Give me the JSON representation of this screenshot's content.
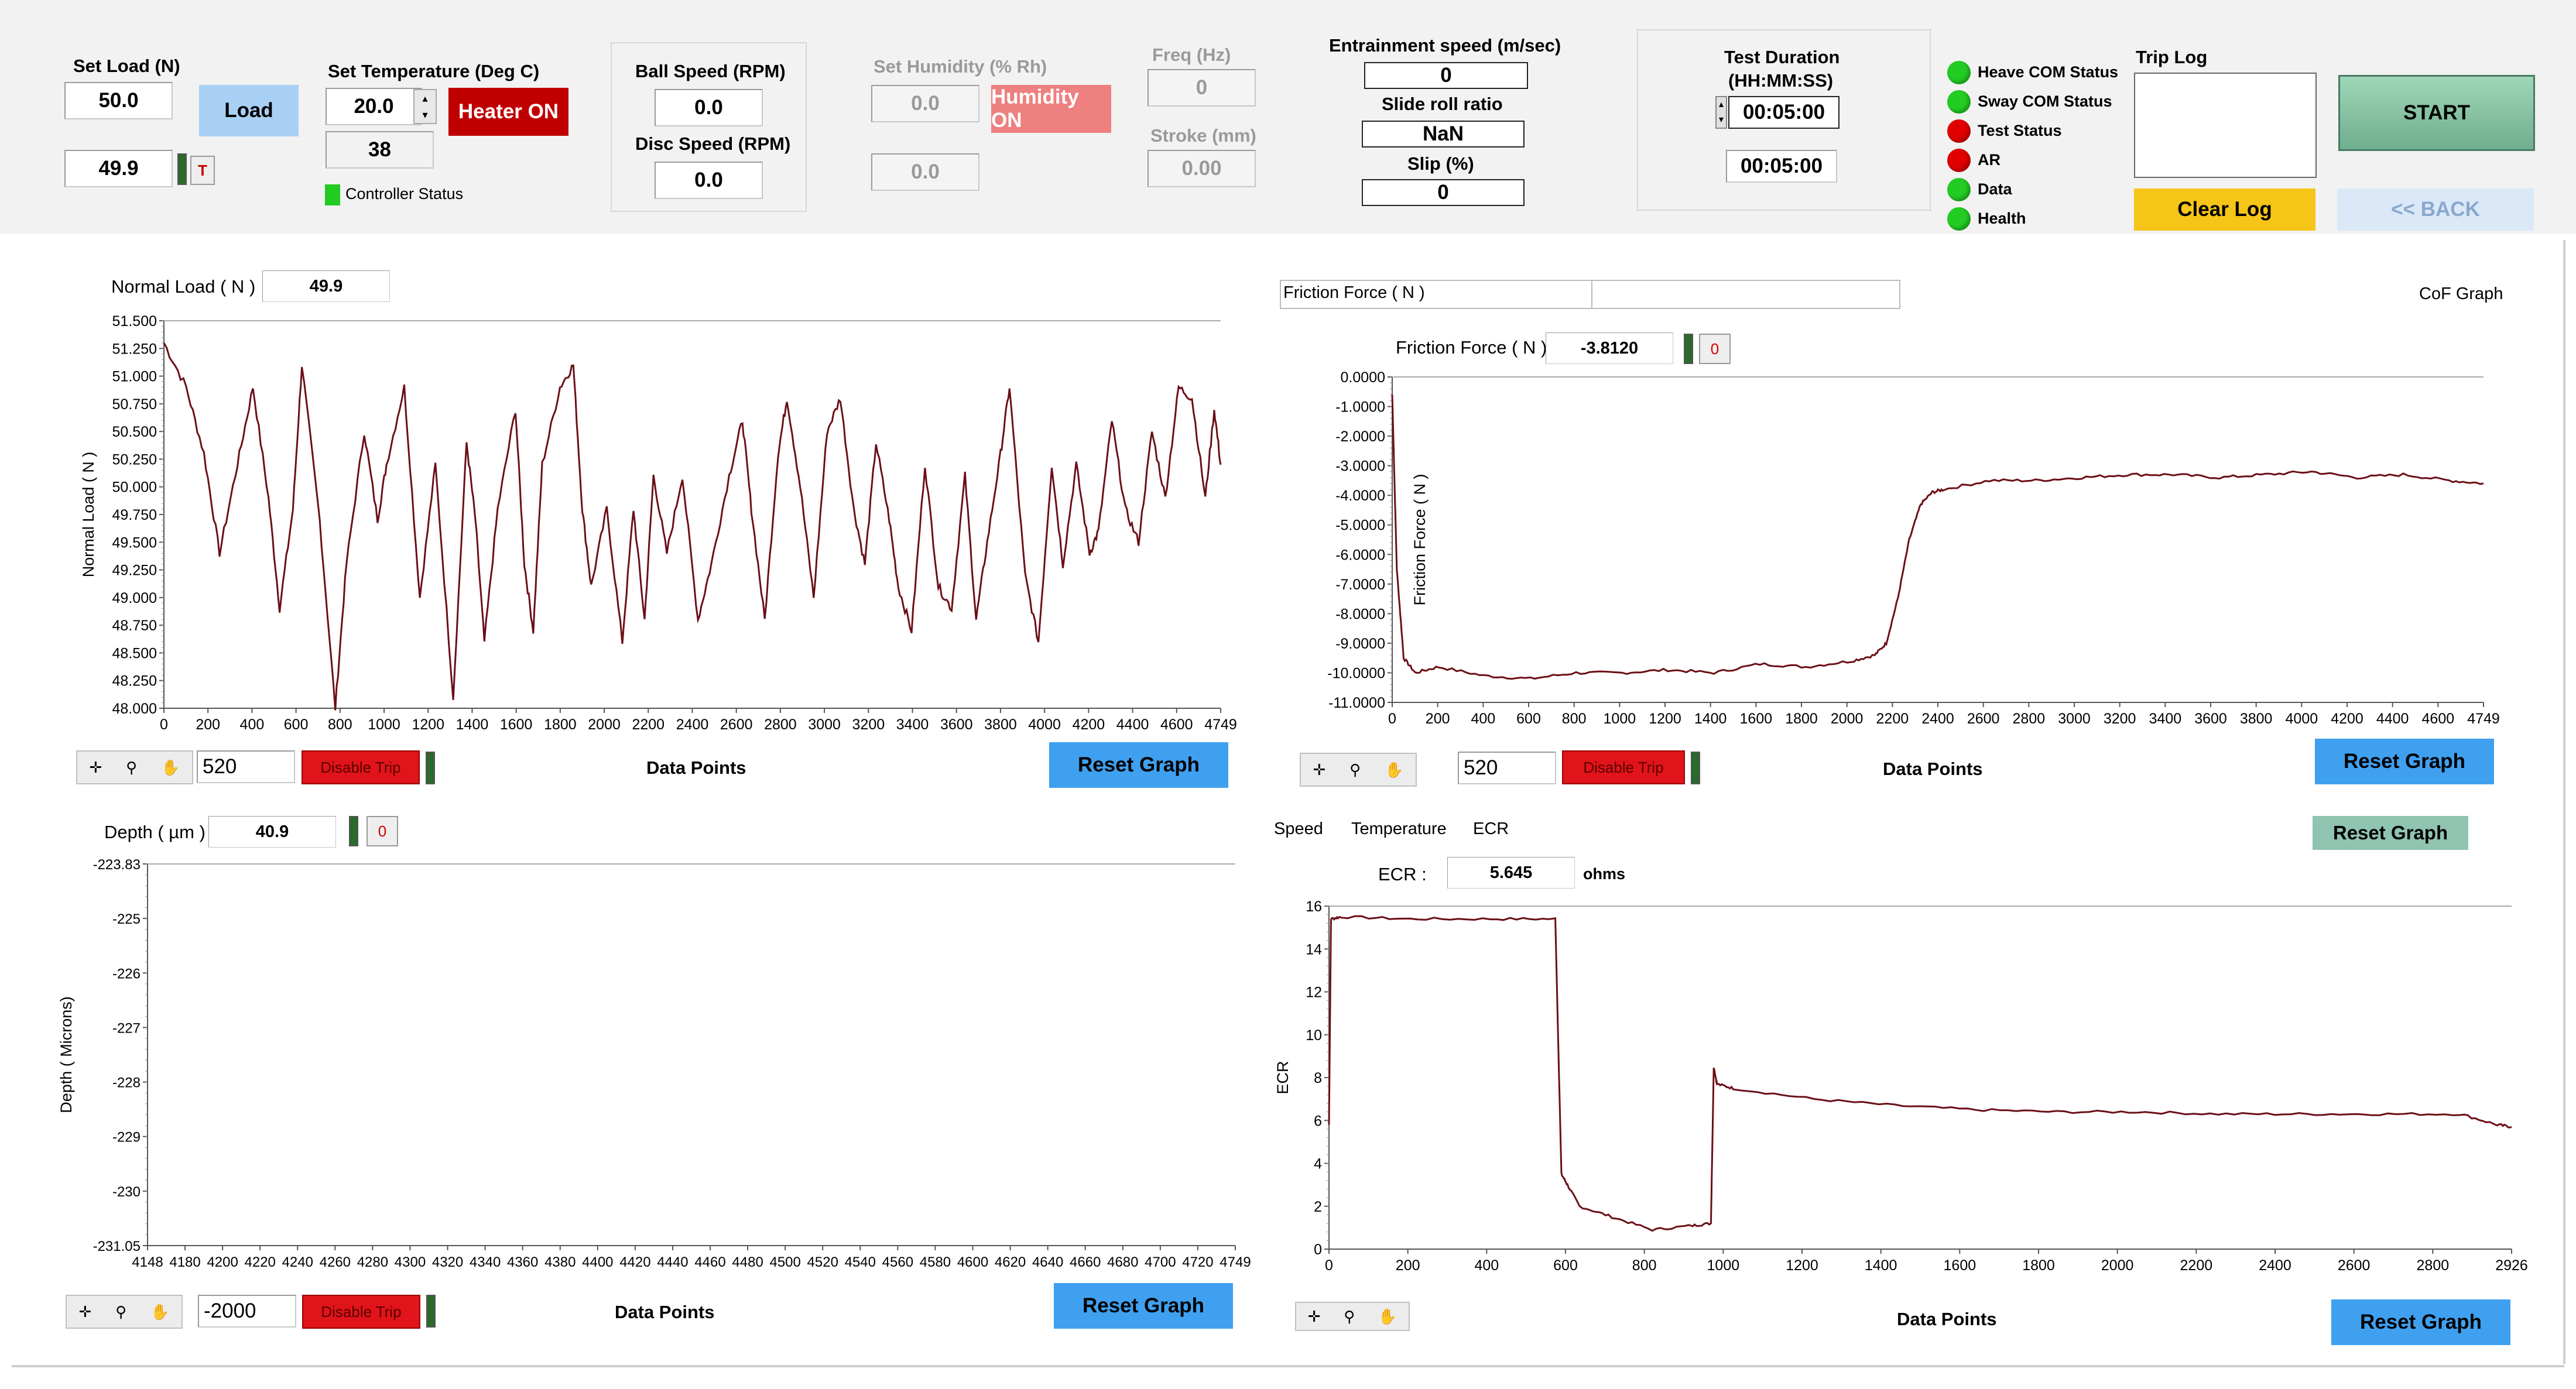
{
  "colors": {
    "trace": "#6b0f16",
    "panel_bg": "#f2f2f2",
    "led_green": "#22cc22",
    "led_red": "#e00000",
    "heater": "#c00000",
    "humidity": "#ee8080",
    "load_btn": "#a8d0f5",
    "start": "#7fbf9f",
    "clear_log": "#f5c518",
    "reset": "#3fa0f0"
  },
  "controls": {
    "set_load": {
      "label": "Set Load (N)",
      "value": "50.0",
      "actual": "49.9",
      "button": "Load",
      "t_button": "T"
    },
    "set_temp": {
      "label": "Set Temperature (Deg C)",
      "value": "20.0",
      "actual": "38",
      "button": "Heater ON",
      "status": "Controller  Status"
    },
    "ball_speed": {
      "label": "Ball Speed (RPM)",
      "value": "0.0"
    },
    "disc_speed": {
      "label": "Disc Speed (RPM)",
      "value": "0.0"
    },
    "humidity": {
      "label": "Set Humidity  (% Rh)",
      "value": "0.0",
      "actual": "0.0",
      "button": "Humidity ON"
    },
    "freq": {
      "label": "Freq (Hz)",
      "value": "0"
    },
    "stroke": {
      "label": "Stroke (mm)",
      "value": "0.00"
    },
    "entrainment": {
      "label": "Entrainment speed (m/sec)",
      "value": "0"
    },
    "slide_roll": {
      "label": "Slide roll ratio",
      "value": "NaN"
    },
    "slip": {
      "label": "Slip (%)",
      "value": "0"
    },
    "test_duration": {
      "label1": "Test Duration",
      "label2": "(HH:MM:SS)",
      "set": "00:05:00",
      "actual": "00:05:00"
    },
    "status_leds": [
      {
        "label": "Heave COM Status",
        "state": "green"
      },
      {
        "label": "Sway COM Status",
        "state": "green"
      },
      {
        "label": "Test Status",
        "state": "red"
      },
      {
        "label": "AR",
        "state": "red"
      },
      {
        "label": "Data",
        "state": "green"
      },
      {
        "label": "Health",
        "state": "green"
      }
    ],
    "trip_log": {
      "label": "Trip Log",
      "clear": "Clear Log"
    },
    "start": "START",
    "back": "<< BACK"
  },
  "graphs": {
    "load": {
      "readout_label": "Normal Load ( N )",
      "readout_value": "49.9",
      "ylabel": "Normal Load ( N )",
      "xlabel": "Data Points",
      "points_input": "520",
      "disable_trip": "Disable Trip",
      "reset": "Reset Graph",
      "yticks": [
        "51.500",
        "51.250",
        "51.000",
        "50.750",
        "50.500",
        "50.250",
        "50.000",
        "49.750",
        "49.500",
        "49.250",
        "49.000",
        "48.750",
        "48.500",
        "48.250",
        "48.000"
      ],
      "xticks": [
        "0",
        "200",
        "400",
        "600",
        "800",
        "1000",
        "1200",
        "1400",
        "1600",
        "1800",
        "2000",
        "2200",
        "2400",
        "2600",
        "2800",
        "3000",
        "3200",
        "3400",
        "3600",
        "3800",
        "4000",
        "4200",
        "4400",
        "4600",
        "4749"
      ]
    },
    "friction": {
      "header_label": "Friction Force ( N )",
      "header_right": "CoF Graph",
      "readout_label": "Friction Force ( N )",
      "readout_value": "-3.8120",
      "readout_btn": "0",
      "ylabel": "Friction Force ( N )",
      "xlabel": "Data Points",
      "points_input": "520",
      "disable_trip": "Disable Trip",
      "reset": "Reset Graph",
      "yticks": [
        "0.0000",
        "-1.0000",
        "-2.0000",
        "-3.0000",
        "-4.0000",
        "-5.0000",
        "-6.0000",
        "-7.0000",
        "-8.0000",
        "-9.0000",
        "-10.0000",
        "-11.0000"
      ],
      "xticks": [
        "0",
        "200",
        "400",
        "600",
        "800",
        "1000",
        "1200",
        "1400",
        "1600",
        "1800",
        "2000",
        "2200",
        "2400",
        "2600",
        "2800",
        "3000",
        "3200",
        "3400",
        "3600",
        "3800",
        "4000",
        "4200",
        "4400",
        "4600",
        "4749"
      ]
    },
    "depth": {
      "readout_label": "Depth ( µm )",
      "readout_value": "40.9",
      "readout_btn": "0",
      "ylabel": "Depth ( Microns)",
      "xlabel": "Data Points",
      "points_input": "-2000",
      "disable_trip": "Disable Trip",
      "reset": "Reset Graph",
      "yticks": [
        "-223.83",
        "-225",
        "-226",
        "-227",
        "-228",
        "-229",
        "-230",
        "-231.05"
      ],
      "xticks": [
        "4148",
        "4180",
        "4200",
        "4220",
        "4240",
        "4260",
        "4280",
        "4300",
        "4320",
        "4340",
        "4360",
        "4380",
        "4400",
        "4420",
        "4440",
        "4460",
        "4480",
        "4500",
        "4520",
        "4540",
        "4560",
        "4580",
        "4600",
        "4620",
        "4640",
        "4660",
        "4680",
        "4700",
        "4720",
        "4749"
      ]
    },
    "ecr": {
      "tabs": [
        "Speed",
        "Temperature",
        "ECR"
      ],
      "readout_label": "ECR :",
      "readout_value": "5.645",
      "unit": "ohms",
      "ylabel": "ECR",
      "xlabel": "Data Points",
      "reset": "Reset Graph",
      "reset_top": "Reset Graph",
      "yticks": [
        "16",
        "14",
        "12",
        "10",
        "8",
        "6",
        "4",
        "2",
        "0"
      ],
      "xticks": [
        "0",
        "200",
        "400",
        "600",
        "800",
        "1000",
        "1200",
        "1400",
        "1600",
        "1800",
        "2000",
        "2200",
        "2400",
        "2600",
        "2800",
        "2926"
      ]
    }
  },
  "chart_data": [
    {
      "type": "line",
      "title": "",
      "ylabel": "Normal Load ( N )",
      "xlabel": "Data Points",
      "xlim": [
        0,
        4749
      ],
      "ylim": [
        48.0,
        51.5
      ],
      "x": [
        0,
        100,
        180,
        250,
        330,
        400,
        470,
        520,
        580,
        620,
        700,
        770,
        820,
        900,
        960,
        1000,
        1080,
        1150,
        1220,
        1300,
        1360,
        1400,
        1440,
        1500,
        1580,
        1620,
        1660,
        1700,
        1780,
        1840,
        1880,
        1920,
        1990,
        2060,
        2110,
        2160,
        2200,
        2260,
        2330,
        2400,
        2460,
        2540,
        2600,
        2640,
        2700,
        2760,
        2800,
        2860,
        2920,
        2980,
        3040,
        3100,
        3150,
        3200,
        3260,
        3300,
        3360,
        3420,
        3480,
        3540,
        3600,
        3650,
        3700,
        3760,
        3800,
        3870,
        3930,
        3990,
        4040,
        4100,
        4160,
        4200,
        4260,
        4320,
        4380,
        4440,
        4500,
        4560,
        4620,
        4680,
        4720,
        4749
      ],
      "y": [
        51.3,
        50.9,
        50.3,
        49.4,
        50.2,
        50.9,
        49.9,
        48.9,
        49.8,
        51.1,
        49.7,
        48.0,
        49.3,
        50.5,
        49.7,
        50.2,
        50.9,
        49.0,
        50.2,
        48.1,
        50.4,
        49.7,
        48.6,
        49.8,
        50.7,
        49.3,
        48.7,
        50.2,
        50.9,
        51.1,
        49.8,
        49.1,
        49.8,
        48.6,
        49.8,
        48.8,
        50.1,
        49.4,
        50.1,
        48.8,
        49.3,
        50.1,
        50.6,
        49.8,
        48.8,
        50.3,
        50.8,
        50.0,
        49.0,
        50.5,
        50.8,
        49.8,
        49.3,
        50.4,
        49.7,
        49.1,
        48.7,
        50.2,
        49.1,
        48.9,
        50.1,
        48.8,
        49.5,
        50.3,
        50.9,
        49.2,
        48.6,
        50.2,
        49.3,
        50.2,
        49.4,
        49.6,
        50.6,
        49.8,
        49.5,
        50.5,
        49.9,
        50.9,
        50.8,
        49.9,
        50.7,
        50.2
      ]
    },
    {
      "type": "line",
      "title": "",
      "ylabel": "Friction Force ( N )",
      "xlabel": "Data Points",
      "xlim": [
        0,
        4749
      ],
      "ylim": [
        -11,
        0
      ],
      "x": [
        0,
        20,
        50,
        100,
        200,
        400,
        600,
        800,
        1000,
        1200,
        1400,
        1600,
        1800,
        2000,
        2100,
        2150,
        2200,
        2250,
        2300,
        2350,
        2400,
        2600,
        2800,
        3000,
        3200,
        3400,
        3600,
        3800,
        4000,
        4200,
        4400,
        4600,
        4749
      ],
      "y": [
        -0.6,
        -6.5,
        -9.5,
        -10.0,
        -9.8,
        -10.1,
        -10.2,
        -10.0,
        -10.0,
        -9.9,
        -10.0,
        -9.7,
        -9.8,
        -9.6,
        -9.4,
        -9.0,
        -7.5,
        -5.5,
        -4.3,
        -3.9,
        -3.8,
        -3.5,
        -3.5,
        -3.4,
        -3.3,
        -3.3,
        -3.4,
        -3.3,
        -3.2,
        -3.4,
        -3.3,
        -3.5,
        -3.6
      ]
    },
    {
      "type": "line",
      "title": "",
      "ylabel": "Depth ( Microns)",
      "xlabel": "Data Points",
      "xlim": [
        4148,
        4749
      ],
      "ylim": [
        -231.05,
        -223.83
      ],
      "x": [],
      "y": []
    },
    {
      "type": "line",
      "title": "",
      "ylabel": "ECR",
      "xlabel": "Data Points",
      "xlim": [
        0,
        2926
      ],
      "ylim": [
        0,
        16
      ],
      "x": [
        0,
        5,
        30,
        200,
        400,
        560,
        575,
        590,
        620,
        700,
        800,
        900,
        945,
        952,
        960,
        1000,
        1200,
        1400,
        1600,
        1800,
        2000,
        2200,
        2400,
        2600,
        2800,
        2890,
        2926
      ],
      "y": [
        5.8,
        15.4,
        15.5,
        15.4,
        15.4,
        15.4,
        3.5,
        3.0,
        2.0,
        1.5,
        0.9,
        1.1,
        1.2,
        8.5,
        7.7,
        7.5,
        7.0,
        6.7,
        6.5,
        6.4,
        6.4,
        6.3,
        6.3,
        6.3,
        6.3,
        5.8,
        5.7
      ]
    }
  ]
}
